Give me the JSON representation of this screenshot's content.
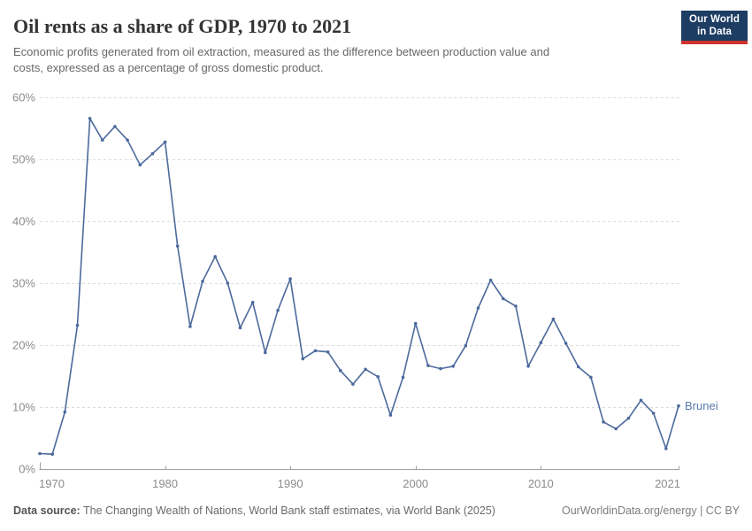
{
  "header": {
    "title": "Oil rents as a share of GDP, 1970 to 2021",
    "subtitle": [
      "Economic profits generated from oil extraction, measured as the difference between production value and",
      "costs, expressed as a percentage of gross domestic product."
    ],
    "logo": {
      "line1": "Our World",
      "line2": "in Data",
      "bg_color": "#1d3d63",
      "accent_color": "#d0332e"
    }
  },
  "chart_data": {
    "type": "line",
    "title": "Oil rents as a share of GDP, 1970 to 2021",
    "xlabel": "",
    "ylabel": "",
    "xlim": [
      1970,
      2021
    ],
    "ylim": [
      0,
      60
    ],
    "x_ticks": [
      1970,
      1980,
      1990,
      2000,
      2010,
      2021
    ],
    "y_ticks": [
      0,
      10,
      20,
      30,
      40,
      50,
      60
    ],
    "y_tick_suffix": "%",
    "grid": "horizontal-dashed",
    "legend_position": "end-of-line-label",
    "colors": {
      "grid": "#dbdbdb",
      "axis": "#a0a0a0",
      "tick_label": "#8c8c8c"
    },
    "series": [
      {
        "name": "Brunei",
        "color": "#4c6a9c",
        "label_color": "#5779ae",
        "x": [
          1970,
          1971,
          1972,
          1973,
          1974,
          1975,
          1976,
          1977,
          1978,
          1979,
          1980,
          1981,
          1982,
          1983,
          1984,
          1985,
          1986,
          1987,
          1988,
          1989,
          1990,
          1991,
          1992,
          1993,
          1994,
          1995,
          1996,
          1997,
          1998,
          1999,
          2000,
          2001,
          2002,
          2003,
          2004,
          2005,
          2006,
          2007,
          2008,
          2009,
          2010,
          2011,
          2012,
          2013,
          2014,
          2015,
          2016,
          2017,
          2018,
          2019,
          2020,
          2021
        ],
        "values": [
          2.5,
          2.4,
          9.2,
          23.2,
          56.6,
          53.1,
          55.3,
          53.1,
          49.1,
          50.9,
          52.8,
          36.0,
          23.0,
          30.3,
          34.3,
          30.0,
          22.8,
          26.9,
          18.8,
          25.6,
          30.7,
          17.8,
          19.1,
          18.9,
          15.9,
          13.7,
          16.1,
          14.9,
          8.7,
          14.8,
          23.5,
          16.7,
          16.2,
          16.6,
          19.9,
          26.0,
          30.5,
          27.5,
          26.3,
          16.6,
          20.4,
          24.2,
          20.3,
          16.5,
          14.8,
          7.6,
          6.5,
          8.2,
          11.1,
          9.0,
          3.3,
          10.2
        ]
      }
    ]
  },
  "footer": {
    "source_label": "Data source:",
    "source_text": " The Changing Wealth of Nations, World Bank staff estimates, via World Bank (2025)",
    "right_text": "OurWorldinData.org/energy | CC BY"
  }
}
